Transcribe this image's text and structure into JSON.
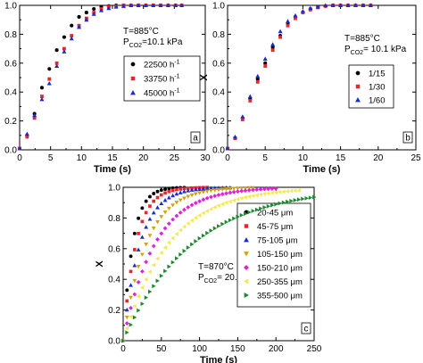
{
  "chart_data": [
    {
      "type": "scatter",
      "panel_label": "a",
      "xlabel": "Time (s)",
      "ylabel": "X",
      "xlim": [
        0,
        30
      ],
      "ylim": [
        0,
        1.0
      ],
      "xticks": [
        0,
        5,
        10,
        15,
        20,
        25,
        30
      ],
      "yticks": [
        0.0,
        0.2,
        0.4,
        0.6,
        0.8,
        1.0
      ],
      "annotations": [
        "T=885°C",
        "P",
        "CO2",
        "=10.1 kPa"
      ],
      "legend_position": "right-middle",
      "series": [
        {
          "name": "22500 h",
          "name_sup": "-1",
          "marker": "circle",
          "color": "#000000",
          "x": [
            0,
            1.2,
            2.4,
            3.6,
            4.8,
            6.0,
            7.2,
            8.4,
            9.6,
            10.8,
            12.0,
            13.2,
            14.4,
            15.6,
            16.8,
            18.0,
            19.2,
            20.4,
            21.6,
            22.8,
            24.0,
            25.2,
            26.2
          ],
          "y": [
            0.01,
            0.1,
            0.25,
            0.43,
            0.56,
            0.69,
            0.78,
            0.86,
            0.92,
            0.95,
            0.975,
            0.99,
            0.995,
            1.0,
            1.0,
            1.0,
            1.0,
            1.0,
            1.0,
            1.0,
            1.0,
            1.0,
            1.0
          ]
        },
        {
          "name": "33750 h",
          "name_sup": "-1",
          "marker": "square",
          "color": "#e8262d",
          "x": [
            0,
            1.2,
            2.4,
            3.6,
            4.8,
            6.0,
            7.2,
            8.4,
            9.6,
            10.8,
            12.0,
            13.2,
            14.4,
            15.6,
            16.8,
            18.0,
            19.2,
            20.4,
            21.6,
            22.8,
            24.0,
            25.2,
            26.2
          ],
          "y": [
            0.01,
            0.09,
            0.22,
            0.37,
            0.49,
            0.6,
            0.7,
            0.79,
            0.86,
            0.91,
            0.95,
            0.975,
            0.99,
            0.995,
            1.0,
            1.0,
            1.0,
            1.0,
            1.0,
            1.0,
            1.0,
            1.0,
            1.0
          ]
        },
        {
          "name": "45000 h",
          "name_sup": "-1",
          "marker": "triangle",
          "color": "#1a2bd6",
          "x": [
            0,
            1.2,
            2.4,
            3.6,
            4.8,
            6.0,
            7.2,
            8.4,
            9.6,
            10.8,
            12.0,
            13.2,
            14.4,
            15.6,
            16.8,
            18.0,
            19.2,
            20.4,
            21.6,
            22.8,
            24.0,
            25.2,
            26.2
          ],
          "y": [
            0.01,
            0.11,
            0.24,
            0.35,
            0.46,
            0.58,
            0.68,
            0.77,
            0.85,
            0.9,
            0.94,
            0.965,
            0.98,
            0.99,
            0.995,
            1.0,
            1.0,
            1.0,
            1.0,
            1.0,
            1.0,
            1.0,
            1.0
          ]
        }
      ]
    },
    {
      "type": "scatter",
      "panel_label": "b",
      "xlabel": "Time (s)",
      "ylabel": "X",
      "xlim": [
        0,
        25
      ],
      "ylim": [
        0,
        1.0
      ],
      "xticks": [
        0,
        5,
        10,
        15,
        20,
        25
      ],
      "yticks": [
        0.0,
        0.2,
        0.4,
        0.6,
        0.8,
        1.0
      ],
      "annotations": [
        "T=885°C",
        "P",
        "CO2",
        "= 10.1 kPa"
      ],
      "legend_position": "right-middle",
      "series": [
        {
          "name": "1/15",
          "marker": "circle",
          "color": "#000000",
          "x": [
            0,
            1.0,
            2.0,
            3.0,
            4.0,
            5.0,
            6.0,
            7.0,
            8.0,
            9.0,
            10.0,
            11.0,
            12.0,
            13.0,
            14.0,
            15.0,
            16.0,
            17.0,
            18.0,
            19.0
          ],
          "y": [
            0.01,
            0.08,
            0.22,
            0.35,
            0.49,
            0.6,
            0.71,
            0.79,
            0.87,
            0.92,
            0.95,
            0.975,
            0.99,
            0.995,
            1.0,
            1.0,
            1.0,
            1.0,
            1.0,
            1.0
          ]
        },
        {
          "name": "1/30",
          "marker": "square",
          "color": "#e8262d",
          "x": [
            0,
            1.0,
            2.0,
            3.0,
            4.0,
            5.0,
            6.0,
            7.0,
            8.0,
            9.0,
            10.0,
            11.0,
            12.0,
            13.0,
            14.0,
            15.0,
            16.0,
            17.0,
            18.0,
            19.0
          ],
          "y": [
            0.01,
            0.08,
            0.21,
            0.34,
            0.47,
            0.58,
            0.69,
            0.78,
            0.86,
            0.91,
            0.95,
            0.97,
            0.985,
            0.995,
            1.0,
            1.0,
            1.0,
            1.0,
            1.0,
            1.0
          ]
        },
        {
          "name": "1/60",
          "marker": "triangle",
          "color": "#1a2bd6",
          "x": [
            0,
            1.0,
            2.0,
            3.0,
            4.0,
            5.0,
            6.0,
            7.0,
            8.0,
            9.0,
            10.0,
            11.0,
            12.0,
            13.0,
            14.0,
            15.0,
            16.0,
            17.0,
            18.0,
            19.0
          ],
          "y": [
            0.01,
            0.09,
            0.23,
            0.37,
            0.51,
            0.63,
            0.73,
            0.82,
            0.89,
            0.93,
            0.96,
            0.98,
            0.99,
            1.0,
            1.0,
            1.0,
            1.0,
            1.0,
            1.0,
            1.0
          ]
        }
      ]
    },
    {
      "type": "scatter",
      "panel_label": "c",
      "xlabel": "Time (s)",
      "ylabel": "X",
      "xlim": [
        0,
        250
      ],
      "ylim": [
        0,
        1.0
      ],
      "xticks": [
        0,
        50,
        100,
        150,
        200,
        250
      ],
      "yticks": [
        0.0,
        0.2,
        0.4,
        0.6,
        0.8,
        1.0
      ],
      "annotations": [
        "T=870°C",
        "P",
        "CO2",
        "= 20.3 kPa"
      ],
      "legend_position": "right",
      "series": [
        {
          "name": "20-45 μm",
          "marker": "circle",
          "color": "#000000",
          "k": 0.08
        },
        {
          "name": "45-75 μm",
          "marker": "square",
          "color": "#e8262d",
          "k": 0.06
        },
        {
          "name": "75-105 μm",
          "marker": "triangle",
          "color": "#1a2bd6",
          "k": 0.045
        },
        {
          "name": "105-150 μm",
          "marker": "triangle-down",
          "color": "#d4a017",
          "k": 0.033
        },
        {
          "name": "150-210 μm",
          "marker": "diamond",
          "color": "#e020e0",
          "k": 0.024
        },
        {
          "name": "250-355 μm",
          "marker": "triangle-left",
          "color": "#f5e94a",
          "k": 0.017
        },
        {
          "name": "355-500 μm",
          "marker": "triangle-right",
          "color": "#1b8a2c",
          "k": 0.011
        }
      ],
      "x_step": 5.0,
      "x_end": [
        80,
        110,
        140,
        170,
        200,
        230,
        250
      ]
    }
  ]
}
